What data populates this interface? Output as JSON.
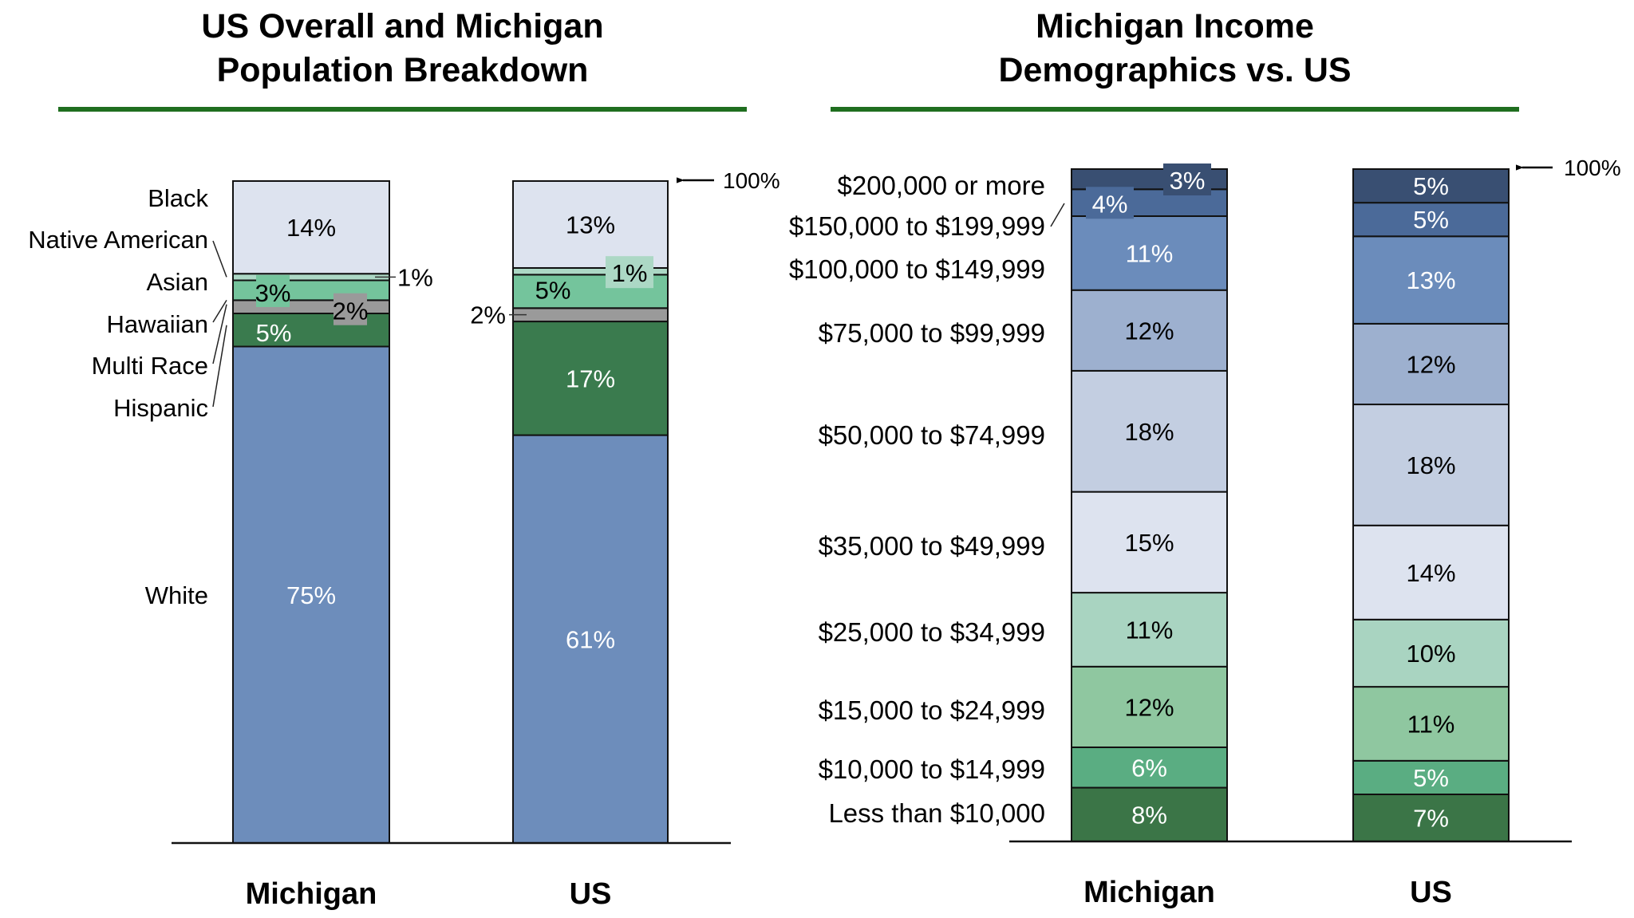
{
  "colors": {
    "rule": "#1f6e1f",
    "axis": "#000000"
  },
  "annotations": {
    "hundred_pct": "100%"
  },
  "chart_data": [
    {
      "type": "bar",
      "stacked": true,
      "title_lines": [
        "US Overall and Michigan",
        "Population Breakdown"
      ],
      "categories": [
        "Michigan",
        "US"
      ],
      "ylim": [
        0,
        100
      ],
      "unit": "%",
      "series": [
        {
          "name": "White",
          "color": "#6d8dbb",
          "text_color": "#ffffff",
          "values": [
            75,
            61
          ],
          "labels": [
            "75%",
            "61%"
          ]
        },
        {
          "name": "Hispanic",
          "color": "#3a7b4e",
          "text_color": "#ffffff",
          "values": [
            5,
            17
          ],
          "labels": [
            "5%",
            "17%"
          ]
        },
        {
          "name": "Multi Race",
          "color": "#9a9a9a",
          "text_color": "#000000",
          "values": [
            2,
            2
          ],
          "labels": [
            "2%",
            "2%"
          ]
        },
        {
          "name": "Hawaiian",
          "color": "#6fc19a",
          "text_color": "#000000",
          "values": [
            0,
            0
          ],
          "labels": [
            "",
            ""
          ]
        },
        {
          "name": "Asian",
          "color": "#74c49c",
          "text_color": "#000000",
          "values": [
            3,
            5
          ],
          "labels": [
            "3%",
            "5%"
          ]
        },
        {
          "name": "Native American",
          "color": "#acd8c5",
          "text_color": "#000000",
          "values": [
            1,
            1
          ],
          "labels": [
            "1%",
            "1%"
          ]
        },
        {
          "name": "Black",
          "color": "#dde3ef",
          "text_color": "#000000",
          "values": [
            14,
            13
          ],
          "labels": [
            "14%",
            "13%"
          ]
        }
      ],
      "legend_order": [
        "Black",
        "Native American",
        "Asian",
        "Hawaiian",
        "Multi Race",
        "Hispanic",
        "White"
      ]
    },
    {
      "type": "bar",
      "stacked": true,
      "title_lines": [
        "Michigan Income",
        "Demographics vs. US"
      ],
      "categories": [
        "Michigan",
        "US"
      ],
      "ylim": [
        0,
        100
      ],
      "unit": "%",
      "series": [
        {
          "name": "Less than $10,000",
          "color": "#3b7547",
          "text_color": "#ffffff",
          "values": [
            8,
            7
          ],
          "labels": [
            "8%",
            "7%"
          ]
        },
        {
          "name": "$10,000 to $14,999",
          "color": "#5aad82",
          "text_color": "#ffffff",
          "values": [
            6,
            5
          ],
          "labels": [
            "6%",
            "5%"
          ]
        },
        {
          "name": "$15,000 to $24,999",
          "color": "#8fc7a0",
          "text_color": "#000000",
          "values": [
            12,
            11
          ],
          "labels": [
            "12%",
            "11%"
          ]
        },
        {
          "name": "$25,000 to $34,999",
          "color": "#a9d4c1",
          "text_color": "#000000",
          "values": [
            11,
            10
          ],
          "labels": [
            "11%",
            "10%"
          ]
        },
        {
          "name": "$35,000 to $49,999",
          "color": "#dde3ef",
          "text_color": "#000000",
          "values": [
            15,
            14
          ],
          "labels": [
            "15%",
            "14%"
          ]
        },
        {
          "name": "$50,000 to $74,999",
          "color": "#c3cee1",
          "text_color": "#000000",
          "values": [
            18,
            18
          ],
          "labels": [
            "18%",
            "18%"
          ]
        },
        {
          "name": "$75,000 to $99,999",
          "color": "#9db0cf",
          "text_color": "#000000",
          "values": [
            12,
            12
          ],
          "labels": [
            "12%",
            "12%"
          ]
        },
        {
          "name": "$100,000 to $149,999",
          "color": "#6b8cbb",
          "text_color": "#ffffff",
          "values": [
            11,
            13
          ],
          "labels": [
            "11%",
            "13%"
          ]
        },
        {
          "name": "$150,000 to $199,999",
          "color": "#4b6a99",
          "text_color": "#ffffff",
          "values": [
            4,
            5
          ],
          "labels": [
            "4%",
            "5%"
          ]
        },
        {
          "name": "$200,000 or more",
          "color": "#394f72",
          "text_color": "#ffffff",
          "values": [
            3,
            5
          ],
          "labels": [
            "3%",
            "5%"
          ]
        }
      ]
    }
  ]
}
